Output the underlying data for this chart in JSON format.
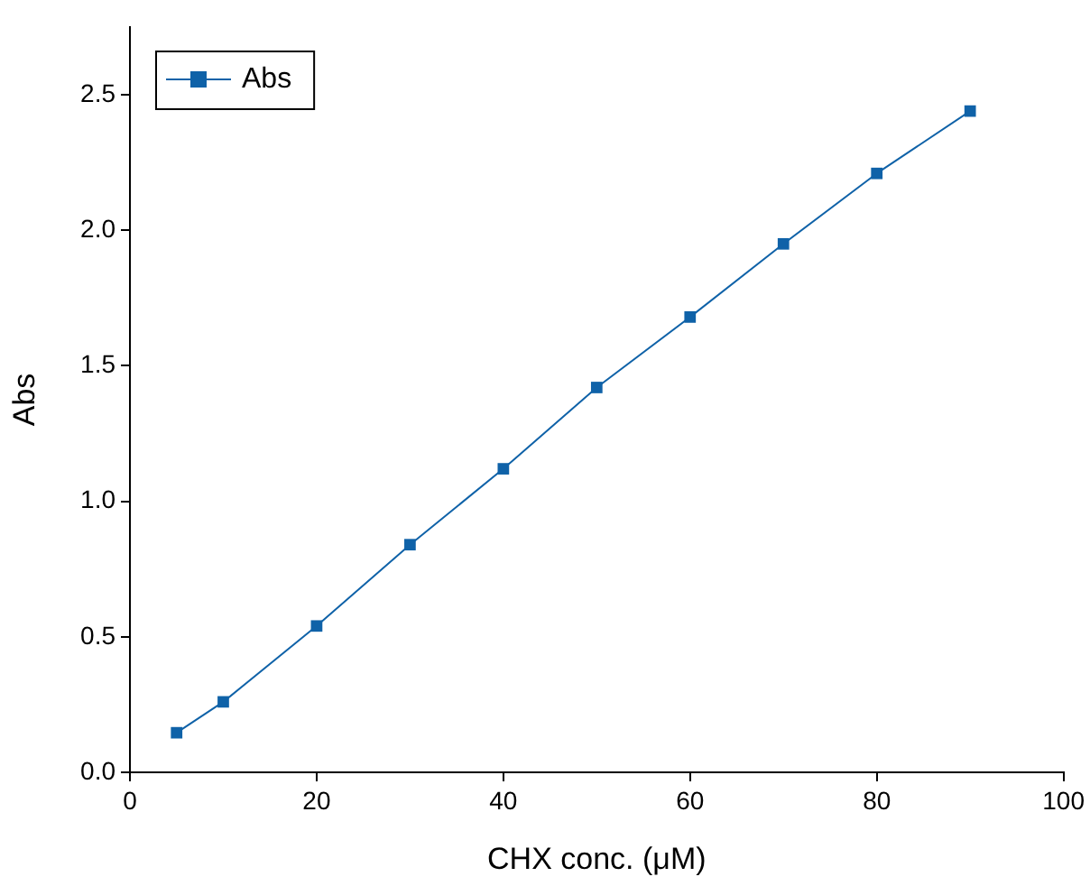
{
  "chart_data": {
    "type": "line",
    "xlabel": "CHX conc. (μM)",
    "ylabel": "Abs",
    "x": [
      5,
      10,
      20,
      30,
      40,
      50,
      60,
      70,
      80,
      90
    ],
    "series": [
      {
        "name": "Abs",
        "color": "#0f62a8",
        "values": [
          0.146,
          0.26,
          0.54,
          0.84,
          1.12,
          1.42,
          1.68,
          1.95,
          2.21,
          2.44
        ]
      }
    ],
    "xlim": [
      0,
      100
    ],
    "xticks": [
      0,
      20,
      40,
      60,
      80,
      100
    ],
    "ylim": [
      0,
      2.75
    ],
    "yticks": [
      {
        "value": 0,
        "label": "0.0"
      },
      {
        "value": 0.5,
        "label": "0.5"
      },
      {
        "value": 1,
        "label": "1.0"
      },
      {
        "value": 1.5,
        "label": "1.5"
      },
      {
        "value": 2,
        "label": "2.0"
      },
      {
        "value": 2.5,
        "label": "2.5"
      }
    ],
    "grid": false,
    "legend": "top left",
    "marker": "square",
    "line_style": "solid"
  }
}
